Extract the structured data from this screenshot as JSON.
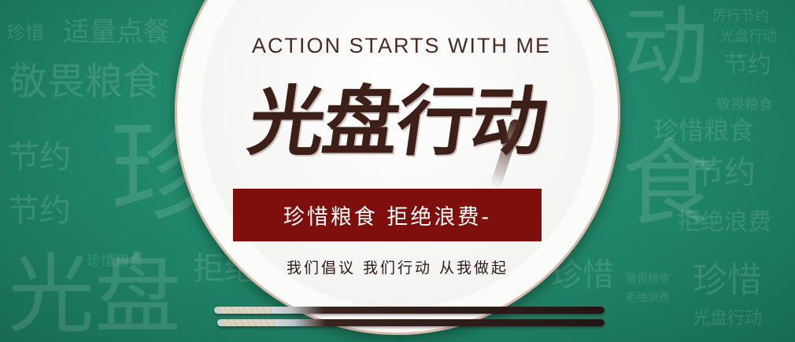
{
  "banner": {
    "english_heading": "ACTION STARTS WITH ME",
    "title": "光盘行动",
    "red_bar_text": "珍惜粮食  拒绝浪费-",
    "slogan": "我们倡议  我们行动  从我做起",
    "colors": {
      "background_green": "#1f8467",
      "plate_white": "#fbfbfa",
      "title_brown": "#3e1f17",
      "bar_red": "#7e0f0c"
    }
  },
  "background_words": [
    "珍惜",
    "适量点餐",
    "敬畏粮食",
    "节约",
    "节约",
    "珍",
    "光盘",
    "珍惜粮食",
    "厉行节约",
    "光盘行动",
    "动",
    "节约",
    "敬畏粮食",
    "珍惜粮食",
    "节约",
    "拒绝浪费",
    "食",
    "珍惜",
    "敬畏粮食",
    "拒绝浪费",
    "光盘行动",
    "拒绝",
    "珍惜"
  ]
}
